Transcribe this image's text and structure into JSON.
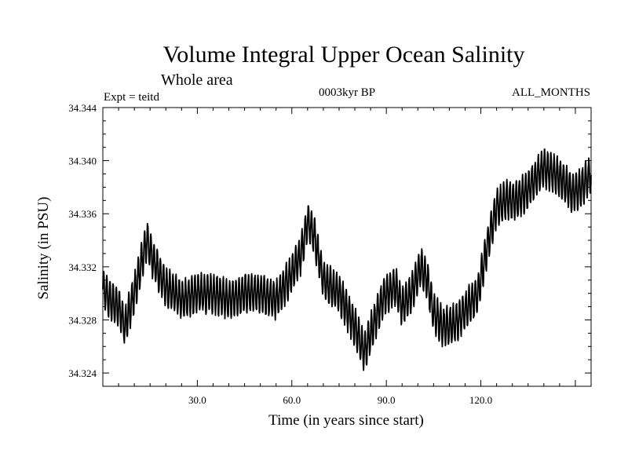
{
  "chart_data": {
    "type": "line",
    "title": "Volume Integral Upper Ocean Salinity",
    "subtitle": "Whole area",
    "left_note": "Expt = teitd",
    "center_note": "0003kyr BP",
    "right_note": "ALL_MONTHS",
    "xlabel": "Time (in years since start)",
    "ylabel": "Salinity (in PSU)",
    "xlim": [
      0,
      155
    ],
    "ylim": [
      34.323,
      34.344
    ],
    "xticks": [
      30,
      60,
      90,
      120
    ],
    "xtick_labels": [
      "30.0",
      "60.0",
      "90.0",
      "120.0"
    ],
    "yticks": [
      34.324,
      34.328,
      34.332,
      34.336,
      34.34,
      34.344
    ],
    "ytick_labels": [
      "34.324",
      "34.328",
      "34.332",
      "34.336",
      "34.340",
      "34.344"
    ],
    "series": [
      {
        "name": "Salinity",
        "seasonal_amplitude": 0.0014,
        "trend_x": [
          0,
          2,
          5,
          7,
          10,
          12,
          14,
          16,
          20,
          25,
          30,
          35,
          40,
          45,
          50,
          55,
          60,
          63,
          65,
          67,
          70,
          75,
          80,
          83,
          85,
          88,
          90,
          93,
          95,
          98,
          101,
          103,
          105,
          108,
          110,
          113,
          116,
          119,
          122,
          125,
          128,
          131,
          134,
          137,
          140,
          143,
          146,
          149,
          152,
          155
        ],
        "trend_y": [
          34.3305,
          34.3295,
          34.329,
          34.3275,
          34.33,
          34.332,
          34.334,
          34.3325,
          34.3305,
          34.3295,
          34.33,
          34.33,
          34.3295,
          34.33,
          34.33,
          34.3295,
          34.3315,
          34.333,
          34.3355,
          34.3345,
          34.331,
          34.33,
          34.3275,
          34.3255,
          34.327,
          34.329,
          34.33,
          34.3305,
          34.329,
          34.33,
          34.332,
          34.331,
          34.3285,
          34.3275,
          34.3275,
          34.328,
          34.329,
          34.33,
          34.3335,
          34.3365,
          34.337,
          34.337,
          34.3375,
          34.3385,
          34.3395,
          34.339,
          34.3385,
          34.3375,
          34.338,
          34.339
        ]
      }
    ]
  }
}
